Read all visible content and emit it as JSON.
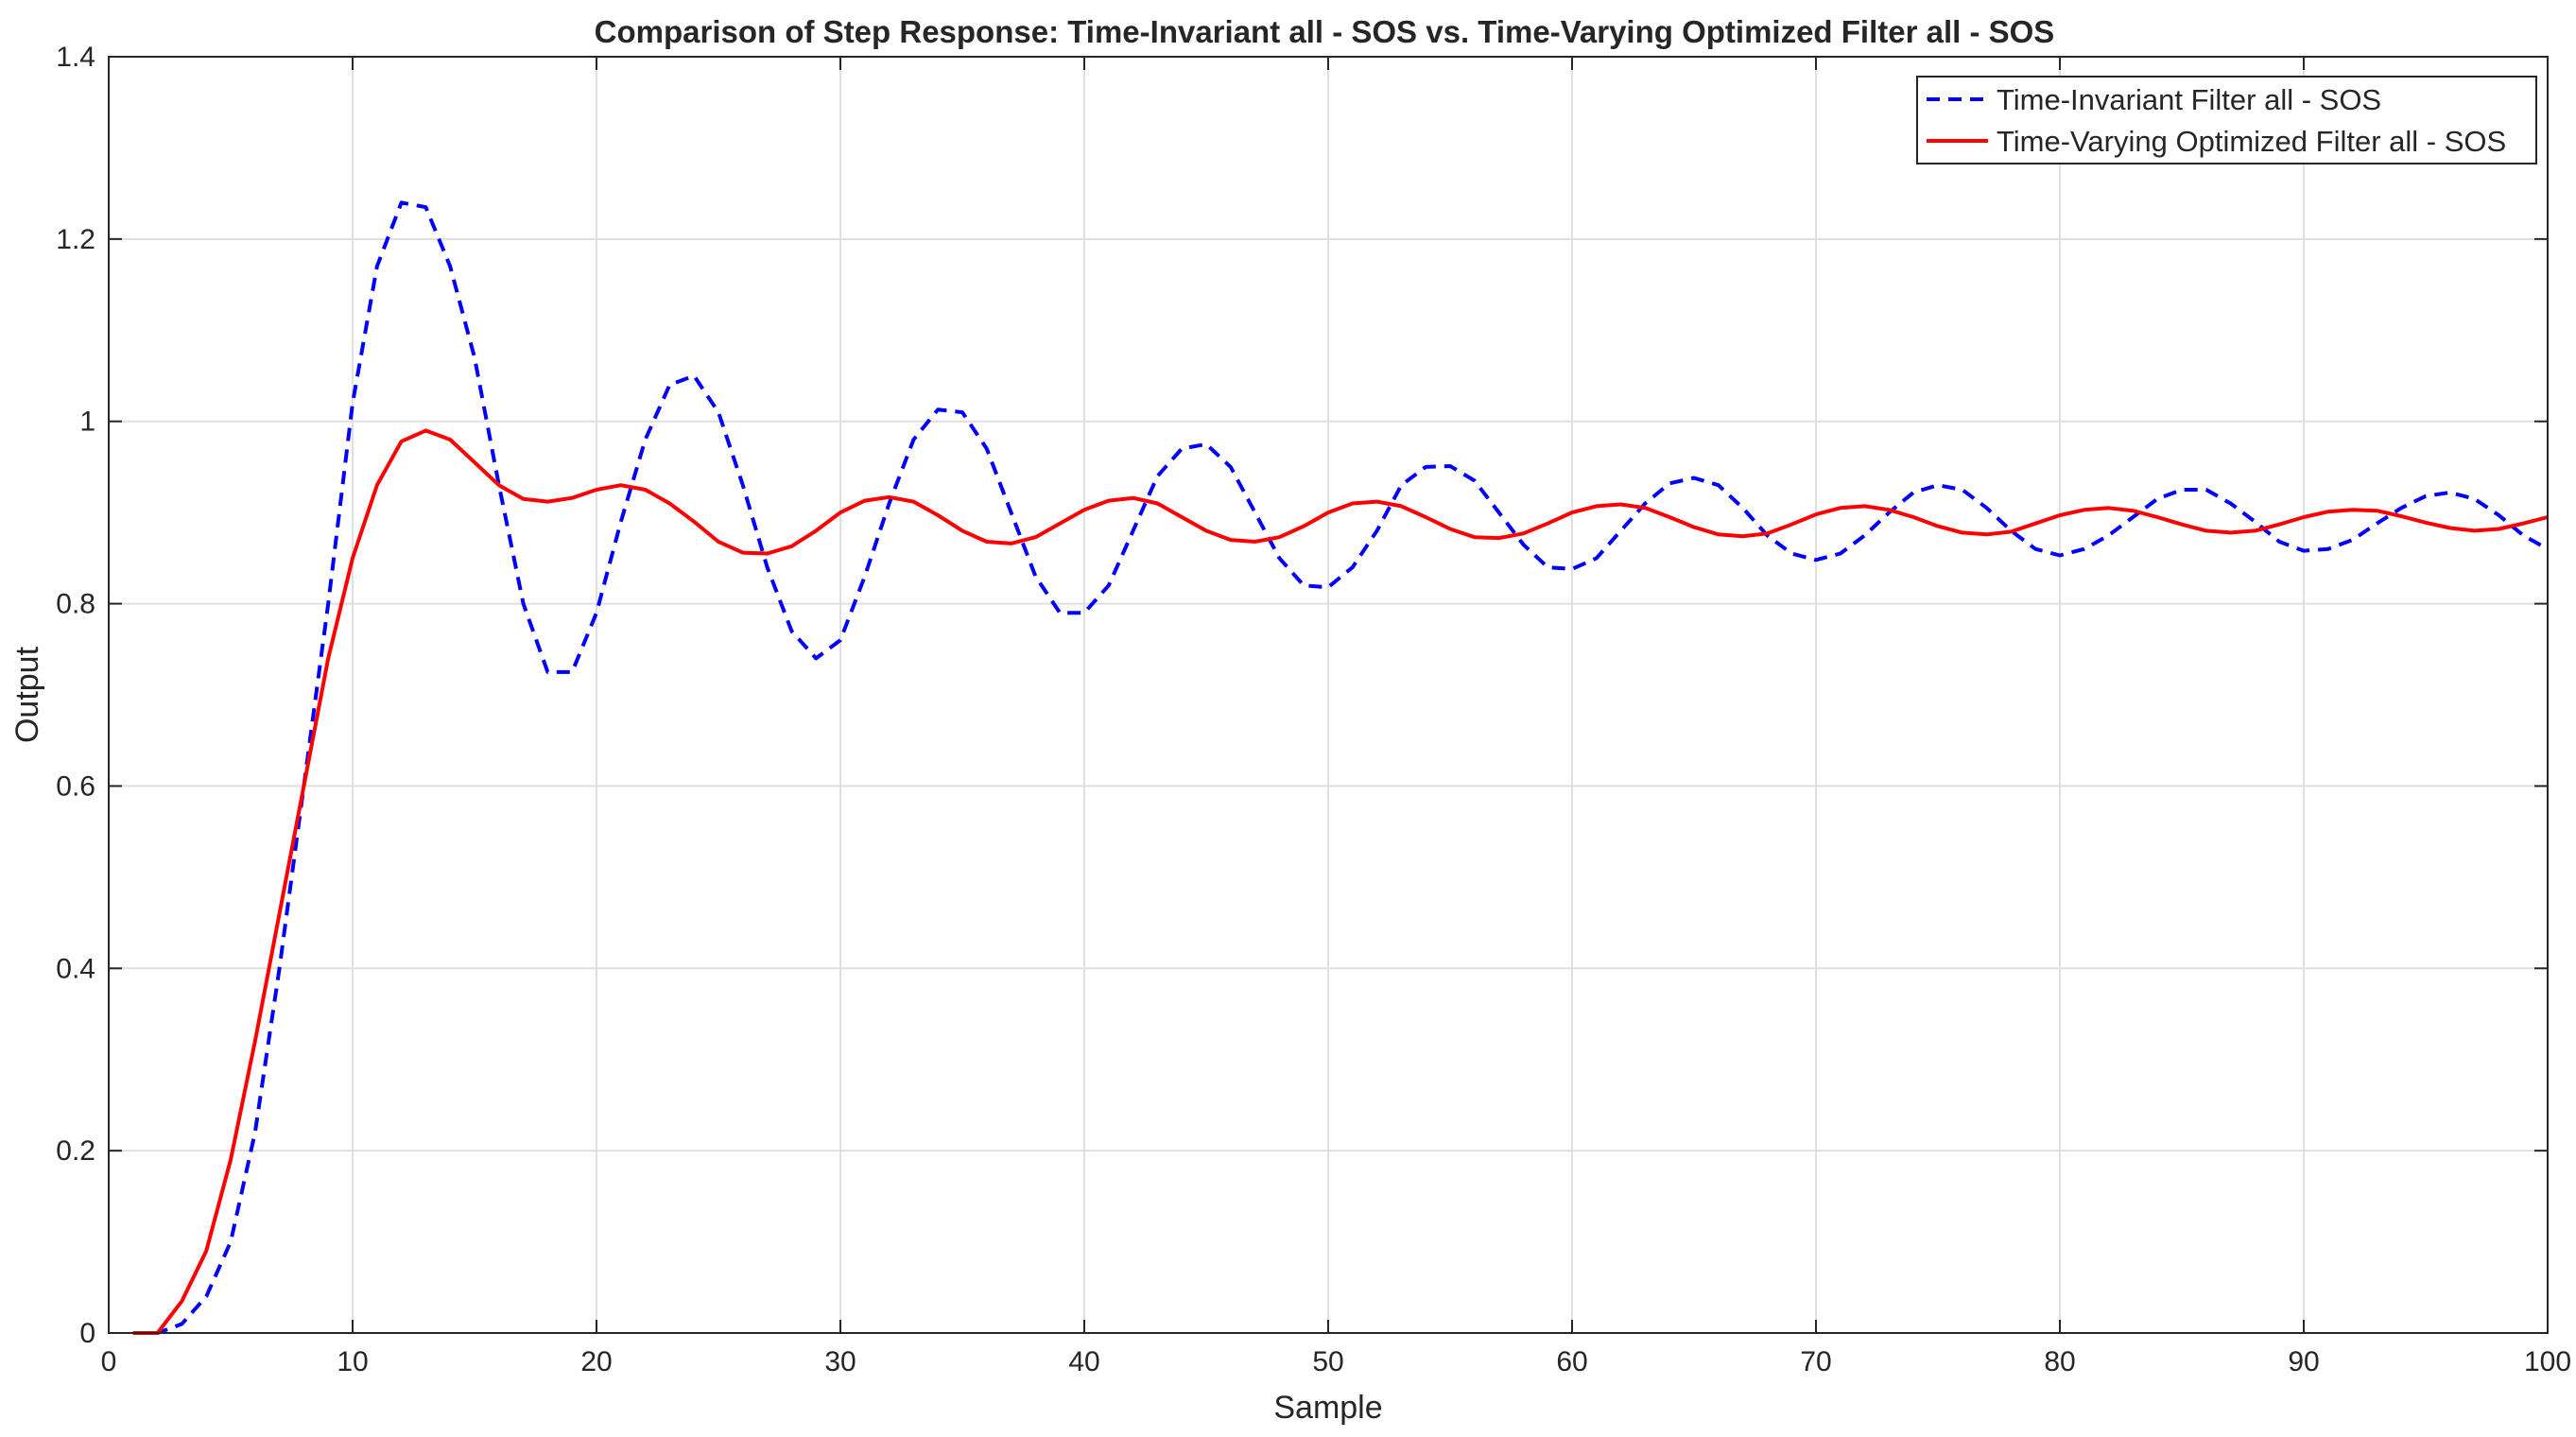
{
  "chart_data": {
    "type": "line",
    "title": "Comparison of Step Response: Time-Invariant all - SOS vs. Time-Varying Optimized Filter all - SOS",
    "xlabel": "Sample",
    "ylabel": "Output",
    "xlim": [
      0,
      100
    ],
    "ylim": [
      0,
      1.4
    ],
    "xticks": [
      "0",
      "10",
      "20",
      "30",
      "40",
      "50",
      "60",
      "70",
      "80",
      "90",
      "100"
    ],
    "yticks": [
      "0",
      "0.2",
      "0.4",
      "0.6",
      "0.8",
      "1",
      "1.2",
      "1.4"
    ],
    "grid": true,
    "legend_position": "top-right",
    "series": [
      {
        "name": "Time-Invariant Filter all - SOS",
        "color": "#0000ff",
        "style": "dashed",
        "x": [
          1,
          2,
          3,
          4,
          5,
          6,
          7,
          8,
          9,
          10,
          11,
          12,
          13,
          14,
          15,
          16,
          17,
          18,
          19,
          20,
          21,
          22,
          23,
          24,
          25,
          26,
          27,
          28,
          29,
          30,
          31,
          32,
          33,
          34,
          35,
          36,
          37,
          38,
          39,
          40,
          41,
          42,
          43,
          44,
          45,
          46,
          47,
          48,
          49,
          50,
          51,
          52,
          53,
          54,
          55,
          56,
          57,
          58,
          59,
          60,
          61,
          62,
          63,
          64,
          65,
          66,
          67,
          68,
          69,
          70,
          71,
          72,
          73,
          74,
          75,
          76,
          77,
          78,
          79,
          80,
          81,
          82,
          83,
          84,
          85,
          86,
          87,
          88,
          89,
          90,
          91,
          92,
          93,
          94,
          95,
          96,
          97,
          98,
          99,
          100
        ],
        "values": [
          0,
          0,
          0.01,
          0.04,
          0.1,
          0.22,
          0.4,
          0.6,
          0.8,
          1.02,
          1.17,
          1.24,
          1.235,
          1.17,
          1.07,
          0.93,
          0.8,
          0.725,
          0.725,
          0.79,
          0.89,
          0.98,
          1.04,
          1.05,
          1.01,
          0.93,
          0.84,
          0.77,
          0.74,
          0.76,
          0.83,
          0.91,
          0.98,
          1.013,
          1.01,
          0.97,
          0.9,
          0.83,
          0.79,
          0.79,
          0.82,
          0.88,
          0.94,
          0.97,
          0.975,
          0.95,
          0.9,
          0.85,
          0.82,
          0.818,
          0.84,
          0.88,
          0.93,
          0.95,
          0.951,
          0.935,
          0.9,
          0.865,
          0.84,
          0.838,
          0.85,
          0.88,
          0.91,
          0.932,
          0.938,
          0.93,
          0.905,
          0.875,
          0.855,
          0.848,
          0.855,
          0.875,
          0.9,
          0.922,
          0.93,
          0.925,
          0.905,
          0.88,
          0.86,
          0.853,
          0.86,
          0.875,
          0.895,
          0.915,
          0.925,
          0.925,
          0.91,
          0.89,
          0.868,
          0.858,
          0.86,
          0.87,
          0.888,
          0.905,
          0.918,
          0.922,
          0.915,
          0.897,
          0.875,
          0.86
        ]
      },
      {
        "name": "Time-Varying Optimized Filter all - SOS",
        "color": "#ff0000",
        "style": "solid",
        "x": [
          1,
          2,
          3,
          4,
          5,
          6,
          7,
          8,
          9,
          10,
          11,
          12,
          13,
          14,
          15,
          16,
          17,
          18,
          19,
          20,
          21,
          22,
          23,
          24,
          25,
          26,
          27,
          28,
          29,
          30,
          31,
          32,
          33,
          34,
          35,
          36,
          37,
          38,
          39,
          40,
          41,
          42,
          43,
          44,
          45,
          46,
          47,
          48,
          49,
          50,
          51,
          52,
          53,
          54,
          55,
          56,
          57,
          58,
          59,
          60,
          61,
          62,
          63,
          64,
          65,
          66,
          67,
          68,
          69,
          70,
          71,
          72,
          73,
          74,
          75,
          76,
          77,
          78,
          79,
          80,
          81,
          82,
          83,
          84,
          85,
          86,
          87,
          88,
          89,
          90,
          91,
          92,
          93,
          94,
          95,
          96,
          97,
          98,
          99,
          100
        ],
        "values": [
          0,
          0,
          0.035,
          0.09,
          0.19,
          0.32,
          0.46,
          0.6,
          0.74,
          0.85,
          0.93,
          0.978,
          0.99,
          0.98,
          0.955,
          0.93,
          0.915,
          0.912,
          0.916,
          0.925,
          0.93,
          0.925,
          0.91,
          0.89,
          0.868,
          0.856,
          0.855,
          0.863,
          0.88,
          0.9,
          0.913,
          0.917,
          0.912,
          0.897,
          0.88,
          0.868,
          0.866,
          0.873,
          0.888,
          0.903,
          0.913,
          0.916,
          0.91,
          0.895,
          0.88,
          0.87,
          0.868,
          0.873,
          0.885,
          0.9,
          0.91,
          0.912,
          0.907,
          0.895,
          0.882,
          0.873,
          0.872,
          0.877,
          0.888,
          0.9,
          0.907,
          0.909,
          0.905,
          0.895,
          0.884,
          0.876,
          0.874,
          0.877,
          0.887,
          0.898,
          0.905,
          0.907,
          0.903,
          0.895,
          0.885,
          0.878,
          0.876,
          0.879,
          0.888,
          0.897,
          0.903,
          0.905,
          0.902,
          0.895,
          0.887,
          0.88,
          0.878,
          0.88,
          0.887,
          0.895,
          0.901,
          0.903,
          0.902,
          0.896,
          0.889,
          0.883,
          0.88,
          0.882,
          0.888,
          0.895
        ]
      }
    ]
  }
}
